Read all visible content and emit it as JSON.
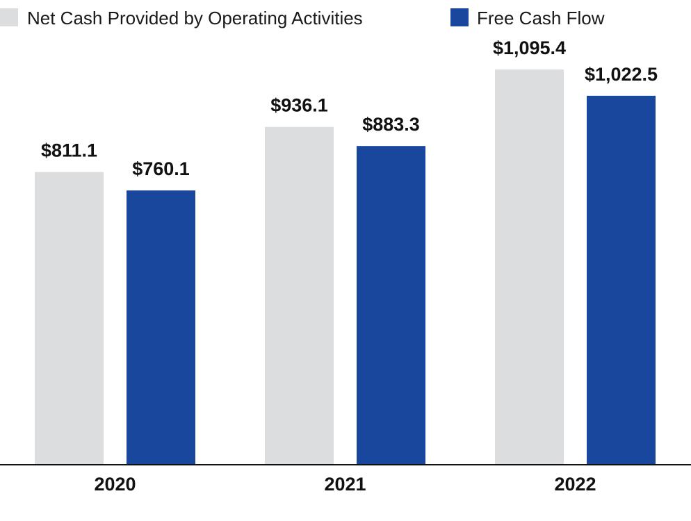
{
  "chart_data": {
    "type": "bar",
    "categories": [
      "2020",
      "2021",
      "2022"
    ],
    "series": [
      {
        "name": "Net Cash Provided by Operating Activities",
        "values": [
          811.1,
          936.1,
          1095.4
        ],
        "labels": [
          "$811.1",
          "$936.1",
          "$1,095.4"
        ],
        "color": "#dcdddf"
      },
      {
        "name": "Free Cash Flow",
        "values": [
          760.1,
          883.3,
          1022.5
        ],
        "labels": [
          "$760.1",
          "$883.3",
          "$1,022.5"
        ],
        "color": "#19479d"
      }
    ],
    "title": "",
    "xlabel": "",
    "ylabel": "",
    "ylim": [
      0,
      1095.4
    ],
    "grid": false,
    "legend_position": "top"
  }
}
